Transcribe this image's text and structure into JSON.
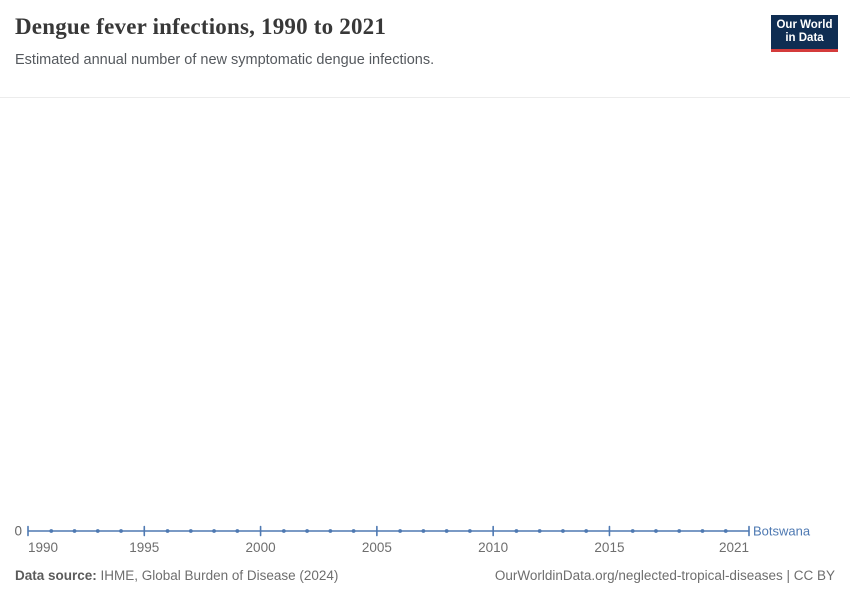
{
  "header": {
    "title": "Dengue fever infections, 1990 to 2021",
    "subtitle": "Estimated annual number of new symptomatic dengue infections.",
    "logo": {
      "line1": "Our World",
      "line2": "in Data",
      "bg_color": "#0f2d52",
      "stripe_color": "#d43b3b"
    }
  },
  "chart_data": {
    "type": "line",
    "title": "Dengue fever infections, 1990 to 2021",
    "subtitle": "Estimated annual number of new symptomatic dengue infections.",
    "x": [
      1990,
      1991,
      1992,
      1993,
      1994,
      1995,
      1996,
      1997,
      1998,
      1999,
      2000,
      2001,
      2002,
      2003,
      2004,
      2005,
      2006,
      2007,
      2008,
      2009,
      2010,
      2011,
      2012,
      2013,
      2014,
      2015,
      2016,
      2017,
      2018,
      2019,
      2020,
      2021
    ],
    "series": [
      {
        "name": "Botswana",
        "color": "#4e79b2",
        "values": [
          0,
          0,
          0,
          0,
          0,
          0,
          0,
          0,
          0,
          0,
          0,
          0,
          0,
          0,
          0,
          0,
          0,
          0,
          0,
          0,
          0,
          0,
          0,
          0,
          0,
          0,
          0,
          0,
          0,
          0,
          0,
          0
        ]
      }
    ],
    "x_range": [
      1990,
      2021
    ],
    "x_ticks": [
      1990,
      1995,
      2000,
      2005,
      2010,
      2015,
      2021
    ],
    "y_ticks": [
      0
    ],
    "y_tick_labels": [
      "0"
    ],
    "ylim": [
      0,
      0
    ],
    "grid": false,
    "legend_position": "end-of-line",
    "entity_label": "Botswana",
    "colors": {
      "line": "#4e79b2",
      "tick_text": "#6e6e6e",
      "y_label_text": "#666666"
    }
  },
  "footer": {
    "source_label": "Data source:",
    "source_text": " IHME, Global Burden of Disease (2024)",
    "attribution": "OurWorldinData.org/neglected-tropical-diseases | CC BY"
  }
}
